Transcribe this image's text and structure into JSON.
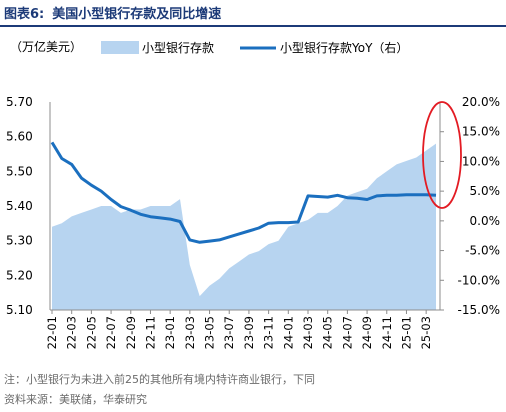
{
  "header": {
    "figure_number": "图表6:",
    "title": "美国小型银行存款及同比增速"
  },
  "notes": {
    "note": "注：小型银行为未进入前25的其他所有境内特许商业银行，下同",
    "source": "资料来源：美联储，华泰研究"
  },
  "colors": {
    "title": "#1c3a78",
    "area": "#b7d4f0",
    "line": "#1b6fbf",
    "highlight": "#e31b23"
  },
  "chart_data": {
    "type": "area+line",
    "unit_label": "（万亿美元）",
    "legend": {
      "area": "小型银行存款",
      "line": "小型银行存款YoY（右）",
      "placement": "top"
    },
    "left_axis": {
      "min": 5.1,
      "max": 5.7,
      "ticks": [
        "5.10",
        "5.20",
        "5.30",
        "5.40",
        "5.50",
        "5.60",
        "5.70"
      ]
    },
    "right_axis": {
      "min": -15.0,
      "max": 20.0,
      "ticks": [
        "-15.0%",
        "-10.0%",
        "-5.0%",
        "0.0%",
        "5.0%",
        "10.0%",
        "15.0%",
        "20.0%"
      ]
    },
    "x_ticks": [
      "22-01",
      "22-03",
      "22-05",
      "22-07",
      "22-09",
      "22-11",
      "23-01",
      "23-03",
      "23-05",
      "23-07",
      "23-09",
      "23-11",
      "24-01",
      "24-03",
      "24-05",
      "24-07",
      "24-09",
      "24-11",
      "25-01",
      "25-03"
    ],
    "grid": false,
    "annotation": "red ellipse highlighting the latest values",
    "series": [
      {
        "name": "小型银行存款",
        "kind": "area",
        "axis": "left",
        "x": [
          "22-01",
          "22-02",
          "22-03",
          "22-04",
          "22-05",
          "22-06",
          "22-07",
          "22-08",
          "22-09",
          "22-10",
          "22-11",
          "22-12",
          "23-01",
          "23-02",
          "23-03",
          "23-04",
          "23-05",
          "23-06",
          "23-07",
          "23-08",
          "23-09",
          "23-10",
          "23-11",
          "23-12",
          "24-01",
          "24-02",
          "24-03",
          "24-04",
          "24-05",
          "24-06",
          "24-07",
          "24-08",
          "24-09",
          "24-10",
          "24-11",
          "24-12",
          "25-01",
          "25-02",
          "25-03",
          "25-04"
        ],
        "values": [
          5.34,
          5.35,
          5.37,
          5.38,
          5.39,
          5.4,
          5.4,
          5.38,
          5.39,
          5.39,
          5.4,
          5.4,
          5.4,
          5.42,
          5.23,
          5.14,
          5.17,
          5.19,
          5.22,
          5.24,
          5.26,
          5.27,
          5.29,
          5.3,
          5.34,
          5.35,
          5.36,
          5.38,
          5.38,
          5.4,
          5.43,
          5.44,
          5.45,
          5.48,
          5.5,
          5.52,
          5.53,
          5.54,
          5.56,
          5.58
        ]
      },
      {
        "name": "小型银行存款YoY（右）",
        "kind": "line",
        "axis": "right",
        "x": [
          "22-01",
          "22-02",
          "22-03",
          "22-04",
          "22-05",
          "22-06",
          "22-07",
          "22-08",
          "22-09",
          "22-10",
          "22-11",
          "22-12",
          "23-01",
          "23-02",
          "23-03",
          "23-04",
          "23-05",
          "23-06",
          "23-07",
          "23-08",
          "23-09",
          "23-10",
          "23-11",
          "23-12",
          "24-01",
          "24-02",
          "24-03",
          "24-04",
          "24-05",
          "24-06",
          "24-07",
          "24-08",
          "24-09",
          "24-10",
          "24-11",
          "24-12",
          "25-01",
          "25-02",
          "25-03",
          "25-04"
        ],
        "values": [
          13.2,
          10.5,
          9.5,
          7.2,
          6.0,
          5.0,
          3.6,
          2.4,
          1.8,
          1.1,
          0.7,
          0.5,
          0.3,
          -0.1,
          -3.2,
          -3.6,
          -3.4,
          -3.2,
          -2.7,
          -2.2,
          -1.7,
          -1.2,
          -0.4,
          -0.3,
          -0.3,
          -0.2,
          4.2,
          4.1,
          4.0,
          4.3,
          3.9,
          3.8,
          3.6,
          4.2,
          4.3,
          4.3,
          4.4,
          4.4,
          4.4,
          4.3
        ]
      }
    ]
  }
}
